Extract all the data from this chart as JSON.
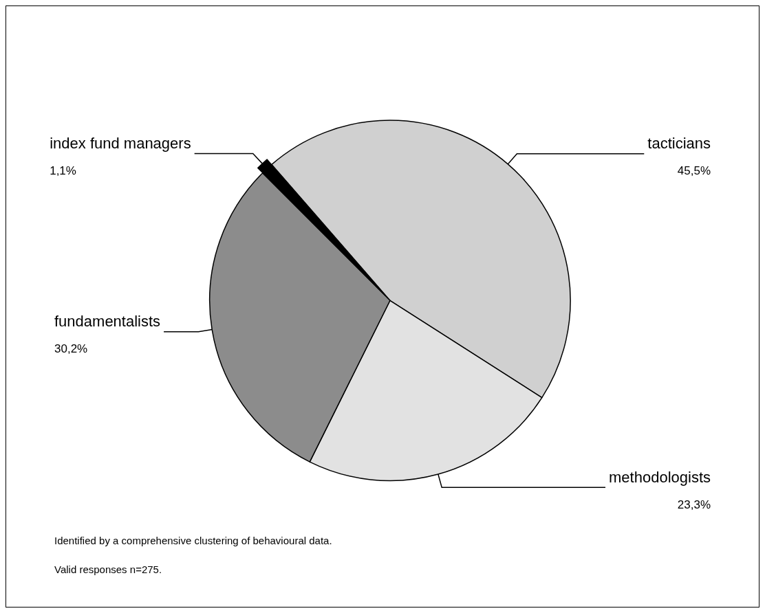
{
  "chart_data": {
    "type": "pie",
    "categories": [
      "tacticians",
      "methodologists",
      "fundamentalists",
      "index fund managers"
    ],
    "values": [
      45.5,
      23.3,
      30.2,
      1.1
    ],
    "value_labels": [
      "45,5%",
      "23,3%",
      "30,2%",
      "1,1%"
    ],
    "colors": [
      "#d0d0d0",
      "#e2e2e2",
      "#8c8c8c",
      "#000000"
    ],
    "legend": false,
    "annotations": [
      "Identified by a comprehensive clustering of behavioural data.",
      "Valid responses n=275."
    ]
  }
}
